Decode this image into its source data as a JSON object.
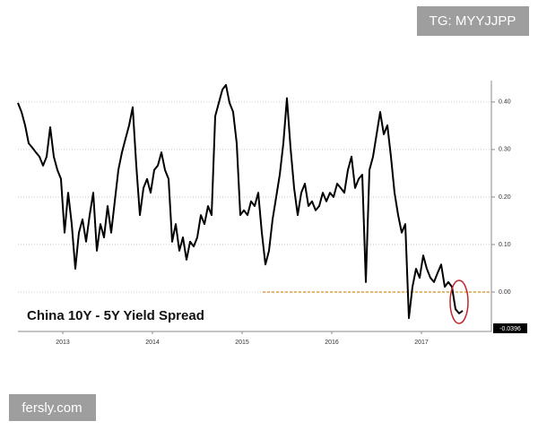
{
  "chart_data": {
    "type": "line",
    "title": "China 10Y - 5Y Yield Spread",
    "watermarks": [
      "TG: MYYJJPP",
      "fersly.com"
    ],
    "x": [
      2013.0,
      2013.04,
      2013.08,
      2013.12,
      2013.16,
      2013.2,
      2013.24,
      2013.28,
      2013.32,
      2013.36,
      2013.4,
      2013.44,
      2013.48,
      2013.52,
      2013.56,
      2013.6,
      2013.64,
      2013.68,
      2013.72,
      2013.76,
      2013.8,
      2013.84,
      2013.88,
      2013.92,
      2013.96,
      2014.0,
      2014.04,
      2014.08,
      2014.12,
      2014.16,
      2014.2,
      2014.24,
      2014.28,
      2014.32,
      2014.36,
      2014.4,
      2014.44,
      2014.48,
      2014.52,
      2014.56,
      2014.6,
      2014.64,
      2014.68,
      2014.72,
      2014.76,
      2014.8,
      2014.84,
      2014.88,
      2014.92,
      2014.96,
      2015.0,
      2015.04,
      2015.08,
      2015.12,
      2015.16,
      2015.2,
      2015.24,
      2015.28,
      2015.32,
      2015.36,
      2015.4,
      2015.44,
      2015.48,
      2015.52,
      2015.56,
      2015.6,
      2015.64,
      2015.68,
      2015.72,
      2015.76,
      2015.8,
      2015.84,
      2015.88,
      2015.92,
      2015.96,
      2016.0,
      2016.04,
      2016.08,
      2016.12,
      2016.16,
      2016.2,
      2016.24,
      2016.28,
      2016.32,
      2016.36,
      2016.4,
      2016.44,
      2016.48,
      2016.52,
      2016.56,
      2016.6,
      2016.64,
      2016.68,
      2016.72,
      2016.76,
      2016.8,
      2016.84,
      2016.88,
      2016.92,
      2016.96,
      2017.0,
      2017.04,
      2017.08,
      2017.12,
      2017.16,
      2017.2,
      2017.24,
      2017.28,
      2017.32,
      2017.36,
      2017.4,
      2017.44,
      2017.48,
      2017.52,
      2017.56,
      2017.6,
      2017.64,
      2017.68,
      2017.72,
      2017.76,
      2017.8,
      2017.84,
      2017.88,
      2017.92,
      2017.96
    ],
    "series": [
      {
        "name": "China 10Y - 5Y Yield Spread",
        "color": "#000000",
        "values": [
          0.398,
          0.379,
          0.351,
          0.313,
          0.304,
          0.294,
          0.285,
          0.266,
          0.285,
          0.347,
          0.285,
          0.257,
          0.238,
          0.125,
          0.209,
          0.143,
          0.049,
          0.125,
          0.153,
          0.106,
          0.162,
          0.209,
          0.087,
          0.143,
          0.115,
          0.181,
          0.125,
          0.191,
          0.257,
          0.294,
          0.323,
          0.351,
          0.389,
          0.266,
          0.162,
          0.219,
          0.238,
          0.209,
          0.257,
          0.266,
          0.294,
          0.257,
          0.238,
          0.106,
          0.143,
          0.087,
          0.115,
          0.068,
          0.106,
          0.096,
          0.115,
          0.162,
          0.143,
          0.181,
          0.162,
          0.37,
          0.398,
          0.426,
          0.436,
          0.398,
          0.379,
          0.313,
          0.162,
          0.172,
          0.162,
          0.191,
          0.181,
          0.209,
          0.125,
          0.058,
          0.087,
          0.153,
          0.2,
          0.247,
          0.313,
          0.408,
          0.304,
          0.219,
          0.162,
          0.209,
          0.228,
          0.181,
          0.191,
          0.172,
          0.181,
          0.209,
          0.191,
          0.209,
          0.2,
          0.228,
          0.219,
          0.209,
          0.257,
          0.285,
          0.219,
          0.238,
          0.247,
          0.021,
          0.257,
          0.285,
          0.332,
          0.379,
          0.332,
          0.351,
          0.285,
          0.209,
          0.162,
          0.125,
          0.143,
          -0.055,
          0.011,
          0.049,
          0.03,
          0.077,
          0.049,
          0.03,
          0.021,
          0.04,
          0.058,
          0.011,
          0.021,
          0.011,
          -0.036,
          -0.045,
          -0.0396
        ]
      }
    ],
    "xlim": [
      2013.0,
      2018.28
    ],
    "xticks": [
      {
        "value": 2013.5,
        "label": "2013"
      },
      {
        "value": 2014.5,
        "label": "2014"
      },
      {
        "value": 2015.5,
        "label": "2015"
      },
      {
        "value": 2016.5,
        "label": "2016"
      },
      {
        "value": 2017.5,
        "label": "2017"
      }
    ],
    "ylim": [
      -0.083,
      0.445
    ],
    "yticks": [
      {
        "value": 0,
        "label": "0.00"
      },
      {
        "value": 0.1,
        "label": "0.10"
      },
      {
        "value": 0.2,
        "label": "0.20"
      },
      {
        "value": 0.3,
        "label": "0.30"
      },
      {
        "value": 0.4,
        "label": "0.40"
      }
    ],
    "grid": true,
    "reference_line": {
      "y": 0,
      "x_start": 2015.73,
      "color": "#e0a040"
    }
  }
}
